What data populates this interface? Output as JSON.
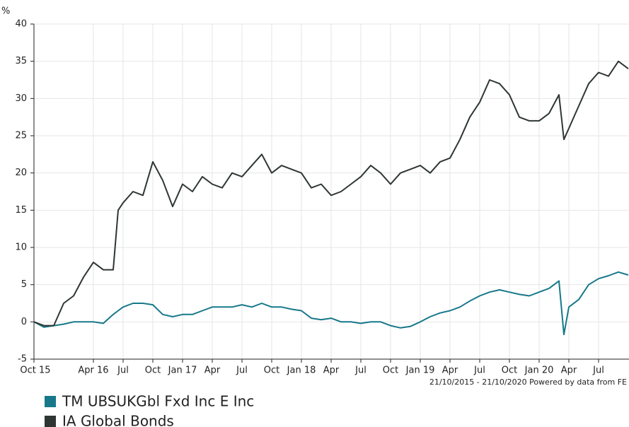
{
  "chart_data": {
    "type": "line",
    "ylabel": "%",
    "annotation": "21/10/2015 - 21/10/2020 Powered by data from FE",
    "xlim": [
      0,
      60
    ],
    "xticks": [
      {
        "value": 0,
        "label": "Oct 15"
      },
      {
        "value": 6,
        "label": "Apr 16"
      },
      {
        "value": 9,
        "label": "Jul"
      },
      {
        "value": 12,
        "label": "Oct"
      },
      {
        "value": 15,
        "label": "Jan 17"
      },
      {
        "value": 18,
        "label": "Apr"
      },
      {
        "value": 21,
        "label": "Jul"
      },
      {
        "value": 24,
        "label": "Oct"
      },
      {
        "value": 27,
        "label": "Jan 18"
      },
      {
        "value": 30,
        "label": "Apr"
      },
      {
        "value": 33,
        "label": "Jul"
      },
      {
        "value": 36,
        "label": "Oct"
      },
      {
        "value": 39,
        "label": "Jan 19"
      },
      {
        "value": 42,
        "label": "Apr"
      },
      {
        "value": 45,
        "label": "Jul"
      },
      {
        "value": 48,
        "label": "Oct"
      },
      {
        "value": 51,
        "label": "Jan 20"
      },
      {
        "value": 54,
        "label": "Apr"
      },
      {
        "value": 57,
        "label": "Jul"
      }
    ],
    "ylim": [
      -5,
      40
    ],
    "yticks": [
      -5,
      0,
      5,
      10,
      15,
      20,
      25,
      30,
      35,
      40
    ],
    "grid": true,
    "x": [
      0,
      1,
      2,
      3,
      4,
      5,
      6,
      7,
      8,
      8.5,
      9,
      10,
      11,
      12,
      13,
      14,
      15,
      16,
      17,
      18,
      19,
      20,
      21,
      22,
      23,
      24,
      25,
      26,
      27,
      28,
      29,
      30,
      31,
      32,
      33,
      34,
      35,
      36,
      37,
      38,
      39,
      40,
      41,
      42,
      43,
      44,
      45,
      46,
      47,
      48,
      49,
      50,
      51,
      52,
      53,
      53.5,
      54,
      55,
      56,
      57,
      58,
      59,
      60
    ],
    "series": [
      {
        "name": "TM UBSUKGbl Fxd Inc E Inc",
        "color": "#17788a",
        "values": [
          0,
          -0.7,
          -0.5,
          -0.3,
          0,
          0,
          0,
          -0.2,
          1,
          1.5,
          2,
          2.5,
          2.5,
          2.3,
          1,
          0.7,
          1,
          1,
          1.5,
          2,
          2,
          2,
          2.3,
          2,
          2.5,
          2,
          2,
          1.7,
          1.5,
          0.5,
          0.3,
          0.5,
          0,
          0,
          -0.2,
          0,
          0,
          -0.5,
          -0.8,
          -0.6,
          0,
          0.7,
          1.2,
          1.5,
          2,
          2.8,
          3.5,
          4,
          4.3,
          4,
          3.7,
          3.5,
          4,
          4.5,
          5.5,
          -1.7,
          2,
          3,
          5,
          5.8,
          6.2,
          6.7,
          6.3
        ]
      },
      {
        "name": "IA Global Bonds",
        "color": "#2e3633",
        "values": [
          0,
          -0.5,
          -0.5,
          2.5,
          3.5,
          6,
          8,
          7,
          7,
          15,
          16,
          17.5,
          17,
          21.5,
          19,
          15.5,
          18.5,
          17.5,
          19.5,
          18.5,
          18,
          20,
          19.5,
          21,
          22.5,
          20,
          21,
          20.5,
          20,
          18,
          18.5,
          17,
          17.5,
          18.5,
          19.5,
          21,
          20,
          18.5,
          20,
          20.5,
          21,
          20,
          21.5,
          22,
          24.5,
          27.5,
          29.5,
          32.5,
          32,
          30.5,
          27.5,
          27,
          27,
          28,
          30.5,
          24.5,
          26,
          29,
          32,
          33.5,
          33,
          35,
          34
        ]
      }
    ],
    "legend": "bottom-left"
  }
}
